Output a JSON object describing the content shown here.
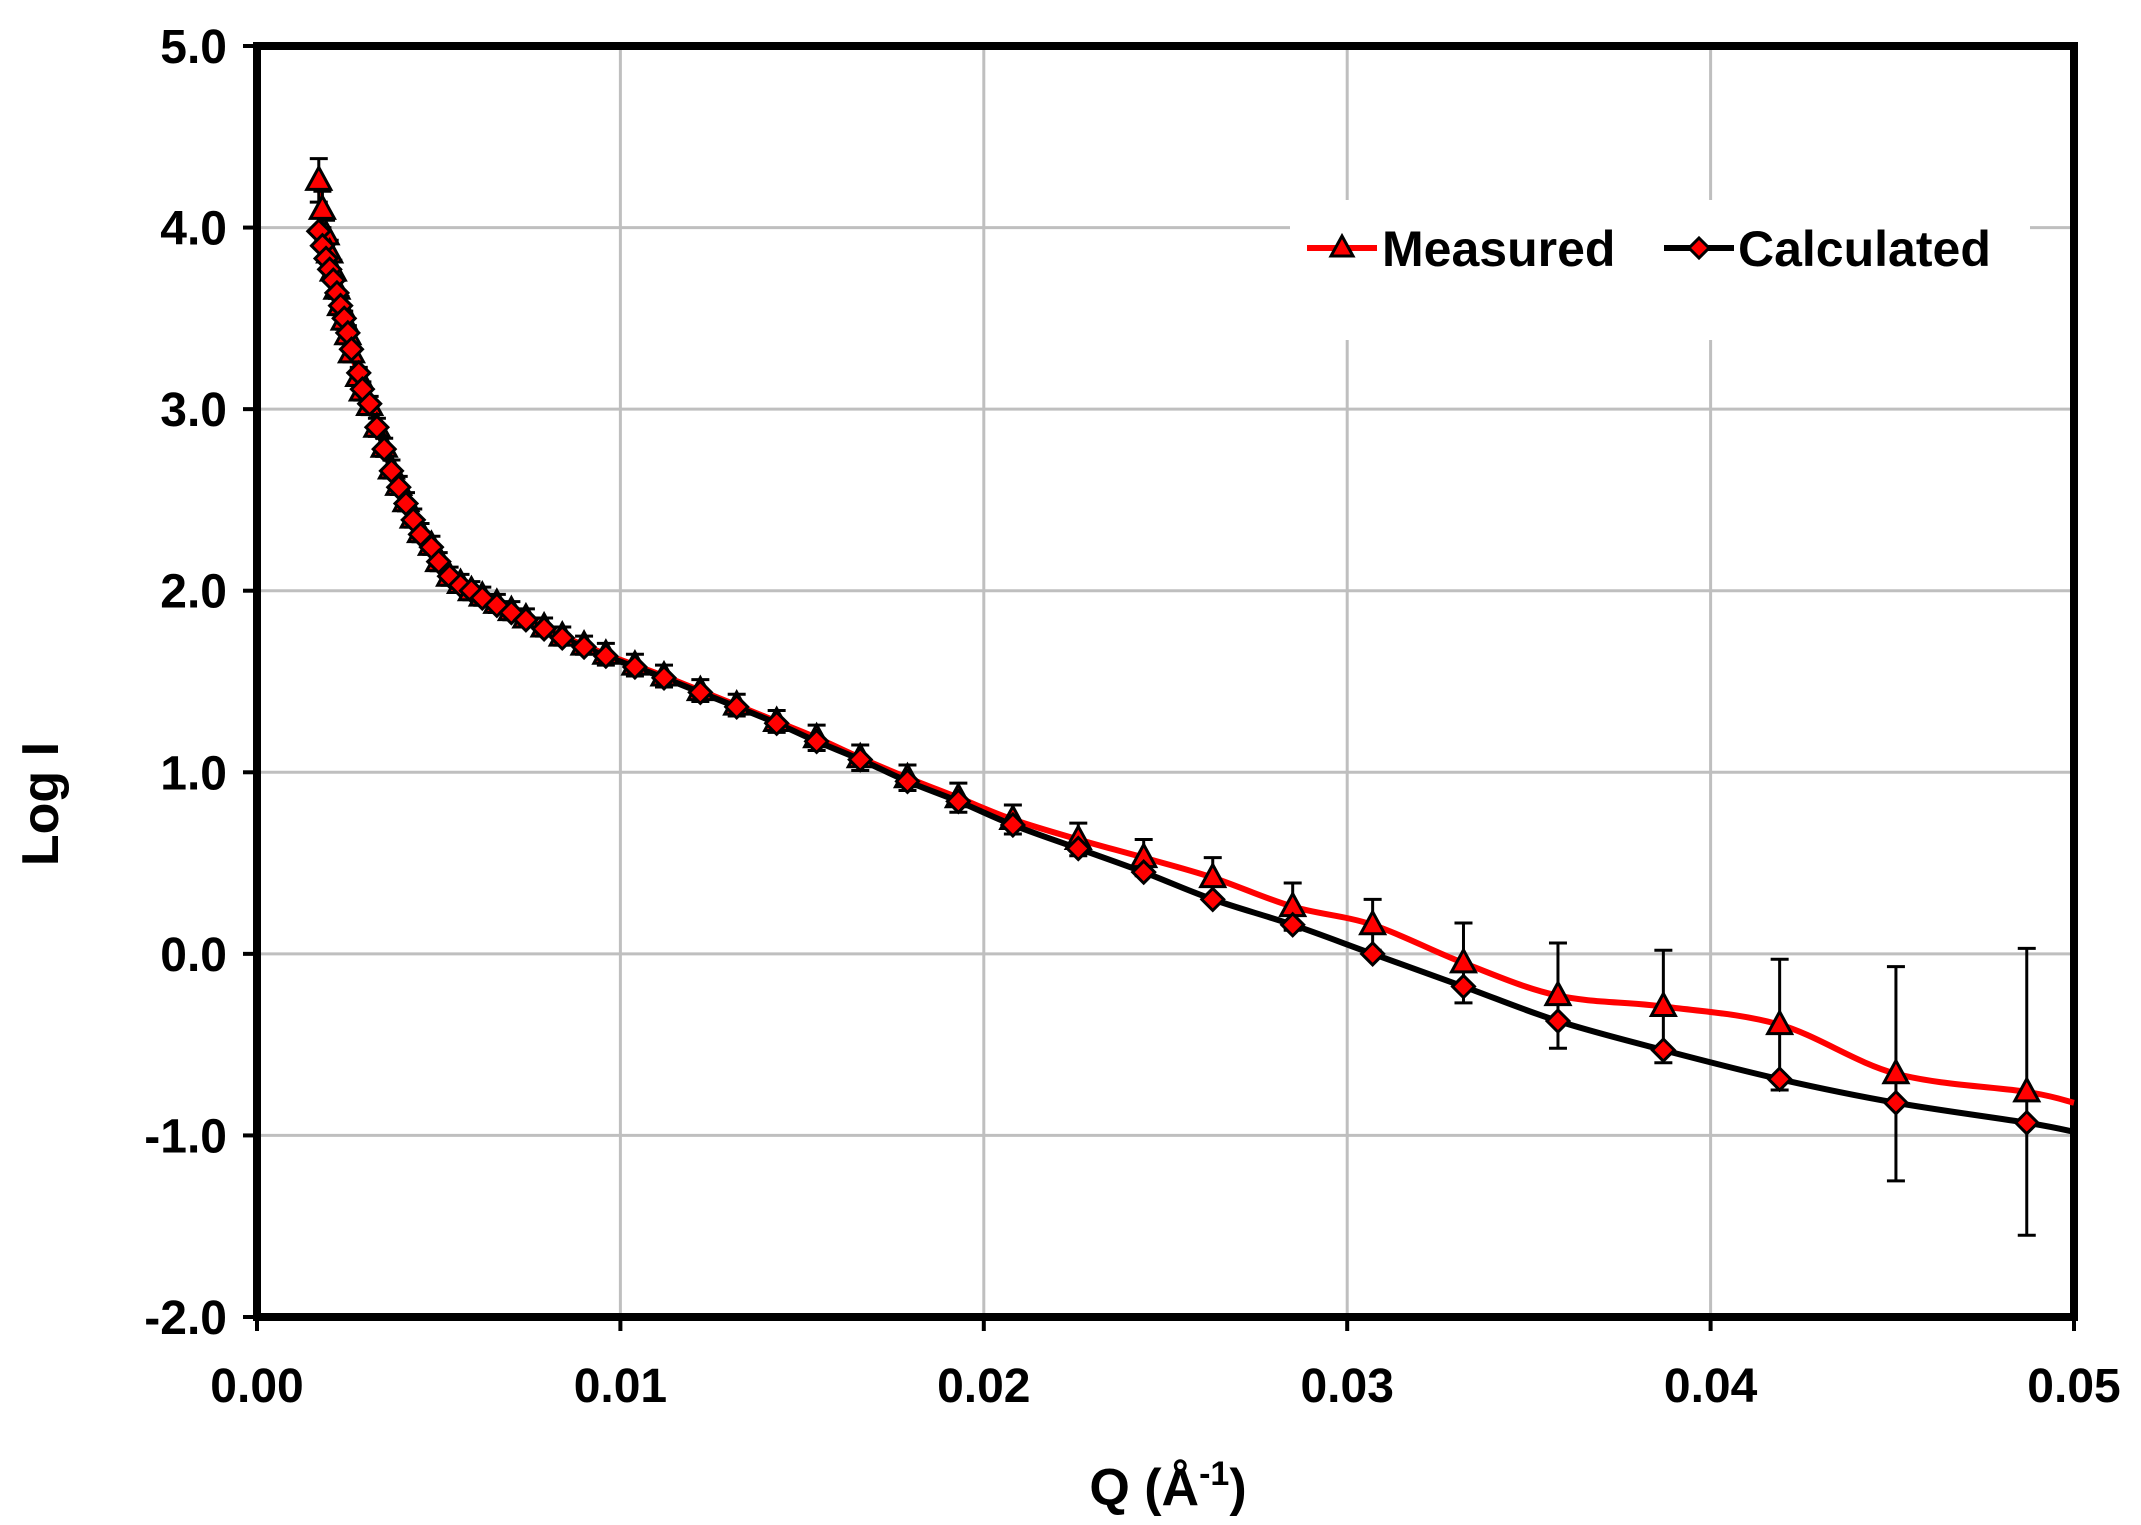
{
  "chart_data": {
    "type": "line",
    "xlabel": "Q (Å",
    "xlabel_sup": "-1",
    "xlabel_close": ")",
    "ylabel": "Log I",
    "xlim": [
      0.0,
      0.05
    ],
    "ylim": [
      -2.0,
      5.0
    ],
    "x_ticks": [
      "0.00",
      "0.01",
      "0.02",
      "0.03",
      "0.04",
      "0.05"
    ],
    "y_ticks": [
      "5.0",
      "4.0",
      "3.0",
      "2.0",
      "1.0",
      "0.0",
      "-1.0",
      "-2.0"
    ],
    "grid": true,
    "legend_position": "top-right",
    "series": [
      {
        "name": "Measured",
        "color": "#ff0000",
        "marker": "triangle",
        "x": [
          0.0017,
          0.0018,
          0.0019,
          0.002,
          0.0021,
          0.0022,
          0.0023,
          0.0024,
          0.0025,
          0.0026,
          0.0028,
          0.0029,
          0.0031,
          0.0033,
          0.0035,
          0.0037,
          0.0039,
          0.0041,
          0.0043,
          0.0045,
          0.0048,
          0.005,
          0.0053,
          0.0056,
          0.0059,
          0.0062,
          0.0066,
          0.007,
          0.0074,
          0.0079,
          0.0084,
          0.009,
          0.0096,
          0.0104,
          0.0112,
          0.0122,
          0.0132,
          0.0143,
          0.0154,
          0.0166,
          0.0179,
          0.0193,
          0.0208,
          0.0226,
          0.0244,
          0.0263,
          0.0285,
          0.0307,
          0.0332,
          0.0358,
          0.0387,
          0.0419,
          0.0451,
          0.0487
        ],
        "y": [
          4.26,
          4.1,
          3.96,
          3.86,
          3.76,
          3.66,
          3.57,
          3.49,
          3.41,
          3.31,
          3.18,
          3.1,
          3.02,
          2.9,
          2.79,
          2.67,
          2.58,
          2.49,
          2.4,
          2.32,
          2.25,
          2.16,
          2.08,
          2.04,
          2.0,
          1.97,
          1.93,
          1.89,
          1.85,
          1.8,
          1.75,
          1.7,
          1.65,
          1.59,
          1.53,
          1.45,
          1.37,
          1.28,
          1.19,
          1.08,
          0.97,
          0.86,
          0.74,
          0.63,
          0.53,
          0.42,
          0.26,
          0.16,
          -0.05,
          -0.23,
          -0.29,
          -0.39,
          -0.66,
          -0.76
        ],
        "error": [
          0.12,
          0.1,
          0.08,
          0.07,
          0.06,
          0.05,
          0.05,
          0.05,
          0.05,
          0.05,
          0.05,
          0.05,
          0.05,
          0.05,
          0.05,
          0.05,
          0.05,
          0.05,
          0.05,
          0.05,
          0.05,
          0.05,
          0.05,
          0.05,
          0.05,
          0.05,
          0.05,
          0.05,
          0.05,
          0.05,
          0.05,
          0.05,
          0.06,
          0.06,
          0.06,
          0.06,
          0.06,
          0.06,
          0.07,
          0.07,
          0.07,
          0.08,
          0.08,
          0.09,
          0.1,
          0.11,
          0.13,
          0.14,
          0.22,
          0.29,
          0.31,
          0.36,
          0.59,
          0.79
        ]
      },
      {
        "name": "Calculated",
        "color": "#000000",
        "marker": "diamond",
        "x": [
          0.0017,
          0.0018,
          0.0019,
          0.002,
          0.0021,
          0.0022,
          0.0023,
          0.0024,
          0.0025,
          0.0026,
          0.0028,
          0.0029,
          0.0031,
          0.0033,
          0.0035,
          0.0037,
          0.0039,
          0.0041,
          0.0043,
          0.0045,
          0.0048,
          0.005,
          0.0053,
          0.0056,
          0.0059,
          0.0062,
          0.0066,
          0.007,
          0.0074,
          0.0079,
          0.0084,
          0.009,
          0.0096,
          0.0104,
          0.0112,
          0.0122,
          0.0132,
          0.0143,
          0.0154,
          0.0166,
          0.0179,
          0.0193,
          0.0208,
          0.0226,
          0.0244,
          0.0263,
          0.0285,
          0.0307,
          0.0332,
          0.0358,
          0.0387,
          0.0419,
          0.0451,
          0.0487
        ],
        "y": [
          3.98,
          3.9,
          3.83,
          3.77,
          3.71,
          3.64,
          3.57,
          3.5,
          3.42,
          3.33,
          3.2,
          3.11,
          3.03,
          2.9,
          2.78,
          2.66,
          2.57,
          2.48,
          2.39,
          2.31,
          2.24,
          2.16,
          2.08,
          2.03,
          2.0,
          1.96,
          1.92,
          1.88,
          1.84,
          1.79,
          1.74,
          1.69,
          1.64,
          1.58,
          1.52,
          1.44,
          1.36,
          1.27,
          1.17,
          1.07,
          0.95,
          0.84,
          0.71,
          0.58,
          0.45,
          0.3,
          0.16,
          0.0,
          -0.18,
          -0.37,
          -0.53,
          -0.69,
          -0.82,
          -0.93
        ]
      }
    ]
  }
}
